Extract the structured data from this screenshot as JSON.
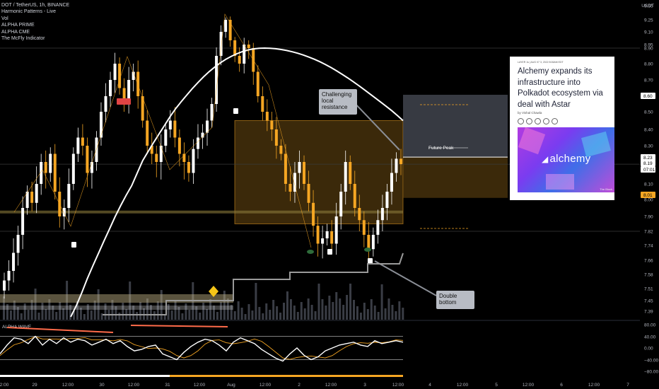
{
  "legend": {
    "symbol": "DOT / TetherUS, 1h, BINANCE",
    "indicators": [
      "Harmonic Patterns - Live",
      "Vol",
      "ALPHA PRIME",
      "ALPHA CME",
      "The McFly Indicator"
    ]
  },
  "quote_currency": "USDT",
  "callouts": {
    "resistance": [
      "Challenging",
      "local",
      "resistance"
    ],
    "bottom": [
      "Double",
      "bottom"
    ]
  },
  "zone_label": "Future Peak",
  "oscillator_label": "ALPHA WAVE",
  "news": {
    "meta": "LAYER 1s | AUG 07 3, 2022 8:06AM EDT",
    "headline": "Alchemy expands its infrastructure into Polkadot ecosystem via deal with Astar",
    "byline": "by Vishal Chawla",
    "image_brand": "alchemy",
    "credit": "The Block",
    "more": "..."
  },
  "colors": {
    "background": "#000000",
    "up_candle": "#ffffff",
    "down_candle": "#f5a623",
    "moving_average": "#ffffff",
    "zone_fill": "#6b4a12",
    "zone_edge": "#f5a623",
    "price_tag": "#f5a623",
    "highlight_tag": "#ffffff",
    "rsi_line": "#ffffff",
    "rsi_signal": "#f5a623",
    "divergence": "#ff6b4a"
  },
  "chart_data": {
    "type": "candlestick",
    "symbol": "DOT/USDT",
    "timeframe": "1h",
    "exchange": "BINANCE",
    "price_axis": {
      "ticks": [
        9.55,
        9.25,
        9.1,
        8.95,
        8.9,
        8.8,
        8.7,
        8.6,
        8.5,
        8.4,
        8.3,
        8.2,
        8.1,
        8.0,
        7.9,
        7.82,
        7.74,
        7.66,
        7.58,
        7.51,
        7.45,
        7.39
      ],
      "tick_labels": [
        "9.55",
        "9.25",
        "9.10",
        "8.95",
        "8.90",
        "8.80",
        "8.70",
        "8.60",
        "8.50",
        "8.40",
        "8.30",
        "8.20",
        "8.10",
        "8.00",
        "7.90",
        "7.82",
        "7.74",
        "7.66",
        "7.58",
        "7.51",
        "7.45",
        "7.39"
      ],
      "tags": [
        {
          "label": "8.60",
          "value": 8.6,
          "style": "white"
        },
        {
          "label": "8.23",
          "value": 8.23,
          "style": "white"
        },
        {
          "label": "8.19",
          "value": 8.19,
          "style": "white"
        },
        {
          "label": "07:01",
          "value": 8.17,
          "style": "white"
        },
        {
          "label": "8.01",
          "value": 8.01,
          "style": "orange"
        }
      ]
    },
    "time_axis": [
      "2:00",
      "29",
      "12:00",
      "30",
      "12:00",
      "31",
      "12:00",
      "Aug",
      "12:00",
      "2",
      "12:00",
      "3",
      "12:00",
      "4",
      "12:00",
      "5",
      "12:00",
      "6",
      "12:00",
      "7"
    ],
    "close": [
      7.55,
      7.6,
      7.7,
      7.8,
      7.95,
      8.05,
      7.98,
      8.1,
      8.2,
      8.15,
      8.25,
      8.05,
      7.9,
      7.95,
      8.1,
      8.25,
      8.35,
      8.3,
      8.15,
      8.2,
      8.35,
      8.5,
      8.6,
      8.7,
      8.8,
      8.65,
      8.55,
      8.7,
      8.75,
      8.6,
      8.45,
      8.3,
      8.25,
      8.2,
      8.3,
      8.4,
      8.45,
      8.35,
      8.25,
      8.2,
      8.15,
      8.28,
      8.35,
      8.38,
      8.45,
      8.55,
      8.85,
      9.1,
      9.25,
      9.0,
      8.85,
      8.8,
      8.95,
      8.9,
      8.75,
      8.6,
      8.5,
      8.45,
      8.4,
      8.3,
      8.25,
      8.1,
      8.05,
      8.15,
      8.2,
      8.1,
      7.98,
      7.85,
      7.75,
      7.78,
      7.82,
      7.75,
      7.9,
      8.05,
      8.2,
      8.1,
      7.95,
      7.88,
      7.8,
      7.72,
      7.8,
      7.88,
      7.95,
      8.05,
      8.15,
      8.22,
      8.19
    ],
    "moving_average": {
      "start": 7.35,
      "peak": 8.9,
      "end": 8.45
    },
    "zone": {
      "top": 8.45,
      "bottom": 7.86,
      "label": "Future Peak"
    },
    "levels": [
      8.9,
      8.19,
      7.82
    ],
    "rsi_axis": {
      "ticks": [
        80.0,
        40.0,
        0.0,
        -40.0,
        -80.0
      ],
      "tick_labels": [
        "80.00",
        "40.00",
        "0.00",
        "−40.00",
        "−80.00"
      ]
    },
    "rsi": [
      -20,
      10,
      35,
      30,
      15,
      40,
      10,
      30,
      15,
      35,
      20,
      30,
      25,
      10,
      20,
      30,
      15,
      25,
      5,
      -10,
      -5,
      5,
      10,
      -20,
      -30,
      -40,
      -15,
      5,
      20,
      30,
      25,
      10,
      -10,
      20,
      35,
      25,
      15,
      -5,
      -20,
      -35,
      -45,
      -20,
      0,
      -25,
      -40,
      -30,
      -10,
      0,
      10,
      15,
      20,
      10,
      5,
      25,
      15,
      20,
      25,
      20
    ]
  }
}
